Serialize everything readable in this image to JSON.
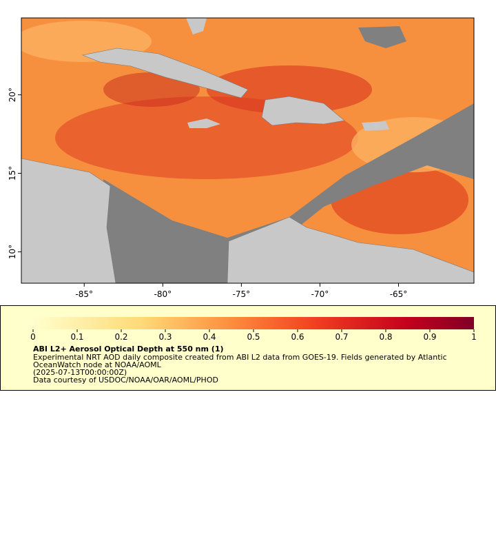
{
  "map": {
    "xlim": [
      -89,
      -60.2
    ],
    "ylim": [
      8,
      24.9
    ],
    "xticks": [
      {
        "value": -85,
        "label": "-85°"
      },
      {
        "value": -80,
        "label": "-80°"
      },
      {
        "value": -75,
        "label": "-75°"
      },
      {
        "value": -70,
        "label": "-70°"
      },
      {
        "value": -65,
        "label": "-65°"
      }
    ],
    "yticks": [
      {
        "value": 10,
        "label": "10°"
      },
      {
        "value": 15,
        "label": "15°"
      },
      {
        "value": 20,
        "label": "20°"
      }
    ]
  },
  "legend": {
    "range": [
      0,
      1
    ],
    "ticks": [
      0,
      0.1,
      0.2,
      0.3,
      0.4,
      0.5,
      0.6,
      0.7,
      0.8,
      0.9,
      1
    ],
    "title": "ABI L2+ Aerosol Optical Depth at 550 nm (1)",
    "lines": [
      "Experimental NRT AOD daily composite created from ABI L2 data from GOES-19. Fields generated by Atlantic",
      "OceanWatch node at NOAA/AOML",
      "(2025-07-13T00:00:00Z)",
      "Data courtesy of USDOC/NOAA/OAR/AOML/PHOD"
    ]
  }
}
